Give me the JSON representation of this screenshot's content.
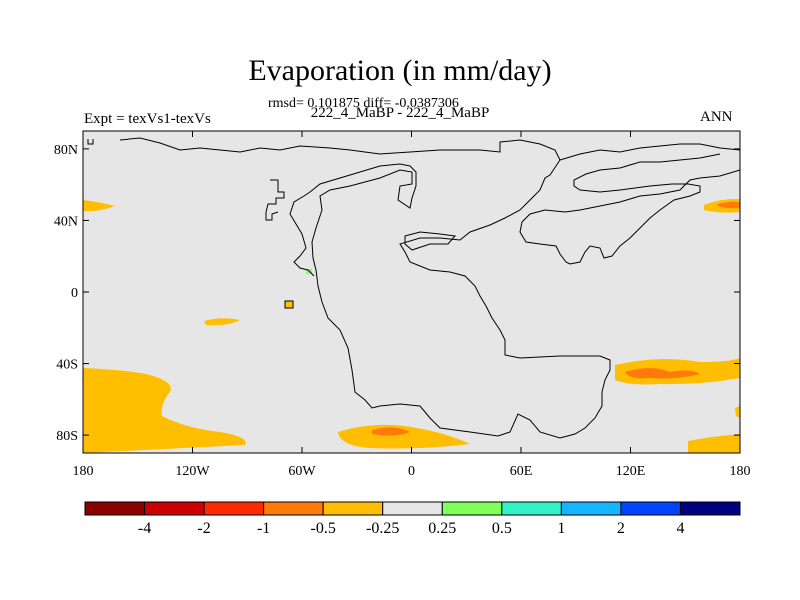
{
  "chart_data": {
    "type": "heatmap",
    "title": "Evaporation (in mm/day)",
    "stats_line": "rmsd= 0.101875 diff= -0.0387306",
    "subtitle": "222_4_MaBP - 222_4_MaBP",
    "left_label": "Expt = texVs1-texVs",
    "right_label": "ANN",
    "x_range": [
      -180,
      180
    ],
    "y_range": [
      -90,
      90
    ],
    "x_ticks": [
      {
        "value": -180,
        "label": "180"
      },
      {
        "value": -120,
        "label": "120W"
      },
      {
        "value": -60,
        "label": "60W"
      },
      {
        "value": 0,
        "label": "0"
      },
      {
        "value": 60,
        "label": "60E"
      },
      {
        "value": 120,
        "label": "120E"
      },
      {
        "value": 180,
        "label": "180"
      }
    ],
    "y_ticks": [
      {
        "value": 80,
        "label": "80N"
      },
      {
        "value": 40,
        "label": "40N"
      },
      {
        "value": 0,
        "label": "0"
      },
      {
        "value": -40,
        "label": "40S"
      },
      {
        "value": -80,
        "label": "80S"
      }
    ],
    "colorbar": {
      "colors": [
        "#8b0000",
        "#cc0000",
        "#ff2a00",
        "#ff7a0a",
        "#ffbf00",
        "#e6e6e6",
        "#7fff5a",
        "#33f2c8",
        "#15b5ff",
        "#0044ff",
        "#000080"
      ],
      "labels": [
        "-4",
        "-2",
        "-1",
        "-0.5",
        "-0.25",
        "0.25",
        "0.5",
        "1",
        "2",
        "4"
      ]
    },
    "background_value_color": "#e6e6e6"
  }
}
